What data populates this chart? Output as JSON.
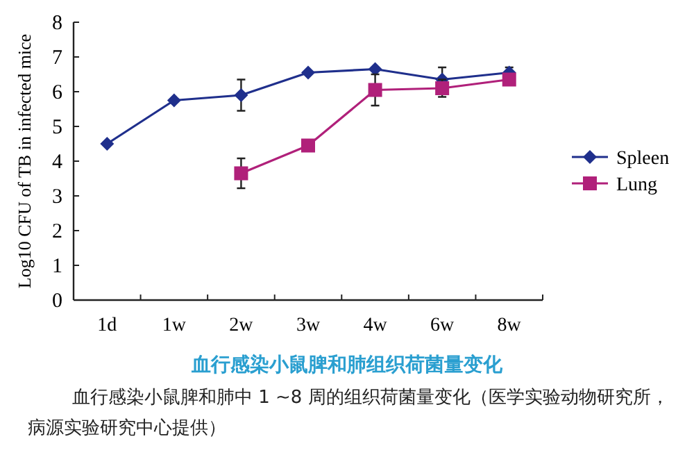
{
  "chart_data": {
    "type": "line",
    "title": "血行感染小鼠脾和肺组织荷菌量变化",
    "ylabel": "Log10 CFU of TB in infected mice",
    "categories": [
      "1d",
      "1w",
      "2w",
      "3w",
      "4w",
      "6w",
      "8w"
    ],
    "ylim": [
      0,
      8
    ],
    "yticks": [
      0,
      1,
      2,
      3,
      4,
      5,
      6,
      7,
      8
    ],
    "legend": "right",
    "line_style": "solid",
    "series": [
      {
        "name": "Spleen",
        "color": "#1f2f8c",
        "marker": "diamond",
        "values": [
          4.5,
          5.75,
          5.9,
          6.55,
          6.65,
          6.35,
          6.55
        ],
        "errors": [
          null,
          null,
          0.45,
          null,
          null,
          0.35,
          0.15
        ]
      },
      {
        "name": "Lung",
        "color": "#b0207a",
        "marker": "square",
        "values": [
          null,
          null,
          3.65,
          4.45,
          6.05,
          6.1,
          6.35
        ],
        "errors": [
          null,
          null,
          0.43,
          null,
          0.45,
          0.25,
          null
        ]
      }
    ],
    "annotations": [
      "血行感染小鼠脾和肺中 1 ~8 周的组织荷菌量变化（医学实验动物研究所，病源实验研究中心提供）"
    ]
  }
}
